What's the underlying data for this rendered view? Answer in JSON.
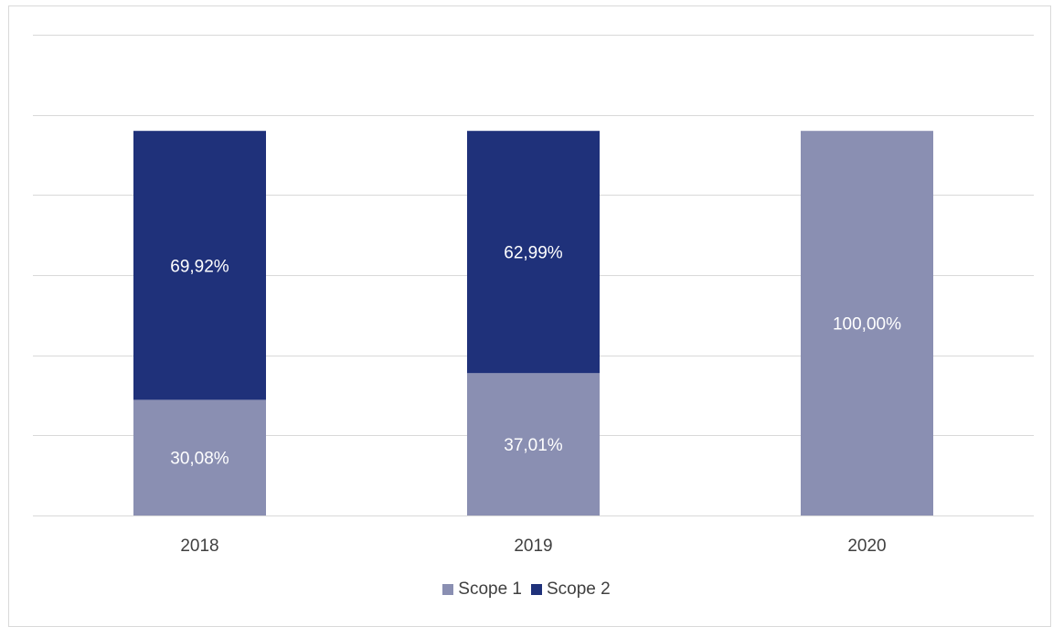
{
  "chart_data": {
    "type": "bar",
    "stacked": true,
    "categories": [
      "2018",
      "2019",
      "2020"
    ],
    "series": [
      {
        "name": "Scope 1",
        "values": [
          30.08,
          37.01,
          100.0
        ],
        "labels": [
          "30,08%",
          "37,01%",
          "100,00%"
        ],
        "color": "#8a8fb2"
      },
      {
        "name": "Scope 2",
        "values": [
          69.92,
          62.99,
          0
        ],
        "labels": [
          "69,92%",
          "62,99%",
          ""
        ],
        "color": "#1f317a"
      }
    ],
    "ylim": [
      0,
      125
    ],
    "grid": true,
    "legend_position": "bottom"
  }
}
